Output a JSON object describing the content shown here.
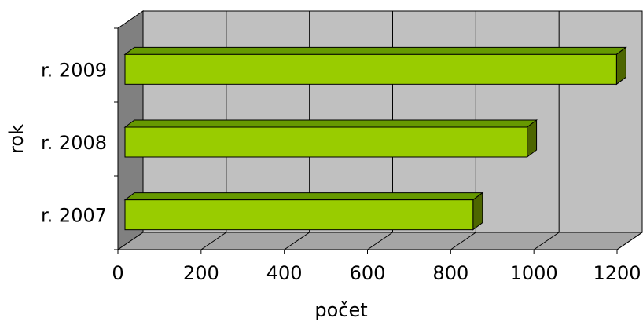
{
  "chart_data": {
    "type": "bar",
    "orientation": "horizontal",
    "three_d": true,
    "categories": [
      "r. 2007",
      "r. 2008",
      "r. 2009"
    ],
    "values": [
      850,
      980,
      1195
    ],
    "xlabel": "počet",
    "ylabel": "rok",
    "xlim": [
      0,
      1200
    ],
    "xticks": [
      0,
      200,
      400,
      600,
      800,
      1000,
      1200
    ],
    "xtick_labels": [
      "0",
      "200",
      "400",
      "600",
      "800",
      "1000",
      "1200"
    ],
    "grid": true,
    "legend": "none",
    "colors": {
      "bar_front": "#99CC00",
      "bar_top": "#669900",
      "bar_side": "#4D6600",
      "plot_wall": "#C0C0C0",
      "side_wall": "#808080",
      "floor": "#A6A6A6"
    }
  }
}
